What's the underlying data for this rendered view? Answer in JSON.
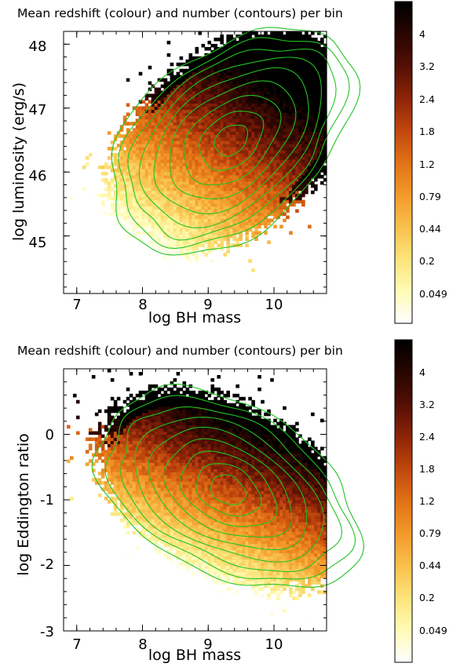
{
  "chart_data": [
    {
      "type": "heatmap",
      "title": "Mean redshift (colour) and number (contours)  per bin",
      "xlabel": "log BH mass",
      "ylabel": "log luminosity (erg/s)",
      "xlim": [
        6.8,
        10.8
      ],
      "ylim": [
        44.1,
        48.2
      ],
      "x_ticks": [
        7,
        8,
        9,
        10
      ],
      "y_ticks": [
        45,
        46,
        47,
        48
      ],
      "x_tick_labels": [
        "7",
        "8",
        "9",
        "10"
      ],
      "y_tick_labels": [
        "45",
        "46",
        "47",
        "48"
      ],
      "colorbar": {
        "label_values": [
          "0.049",
          "0.2",
          "0.44",
          "0.79",
          "1.2",
          "1.8",
          "2.4",
          "3.2",
          "4"
        ],
        "colormap": [
          "#ffffff",
          "#fffbb3",
          "#fde37a",
          "#f9c04c",
          "#f39a2a",
          "#e17216",
          "#c2480e",
          "#8e2508",
          "#561005",
          "#2a0602",
          "#000000"
        ]
      },
      "contour_color": "#22c322",
      "density_peak": {
        "x": 9.35,
        "y": 46.5
      },
      "density_axis_angle_deg": 42,
      "contour_radii": [
        [
          0.28,
          0.21
        ],
        [
          0.55,
          0.38
        ],
        [
          0.85,
          0.55
        ],
        [
          1.12,
          0.71
        ],
        [
          1.38,
          0.86
        ],
        [
          1.62,
          1.0
        ],
        [
          1.82,
          1.13
        ],
        [
          2.0,
          1.25
        ],
        [
          2.16,
          1.38
        ]
      ],
      "redshift_trend": {
        "low": [
          7.8,
          45.0
        ],
        "high": [
          9.5,
          47.6
        ]
      }
    },
    {
      "type": "heatmap",
      "title": "Mean redshift (colour) and number (contours)  per bin",
      "xlabel": "log BH mass",
      "ylabel": "log Eddington ratio",
      "xlim": [
        6.8,
        10.8
      ],
      "ylim": [
        -3.0,
        1.0
      ],
      "x_ticks": [
        7,
        8,
        9,
        10
      ],
      "y_ticks": [
        -3,
        -2,
        -1,
        0
      ],
      "x_tick_labels": [
        "7",
        "8",
        "9",
        "10"
      ],
      "y_tick_labels": [
        "-3",
        "-2",
        "-1",
        "0"
      ],
      "colorbar": {
        "label_values": [
          "0.049",
          "0.2",
          "0.44",
          "0.79",
          "1.2",
          "1.8",
          "2.4",
          "3.2",
          "4"
        ],
        "colormap": [
          "#ffffff",
          "#fffbb3",
          "#fde37a",
          "#f9c04c",
          "#f39a2a",
          "#e17216",
          "#c2480e",
          "#8e2508",
          "#561005",
          "#2a0602",
          "#000000"
        ]
      },
      "contour_color": "#22c322",
      "density_peak": {
        "x": 9.3,
        "y": -0.85
      },
      "density_axis_angle_deg": -28,
      "contour_radii": [
        [
          0.28,
          0.21
        ],
        [
          0.52,
          0.36
        ],
        [
          0.78,
          0.5
        ],
        [
          1.04,
          0.64
        ],
        [
          1.3,
          0.78
        ],
        [
          1.55,
          0.92
        ],
        [
          1.78,
          1.05
        ],
        [
          1.98,
          1.18
        ],
        [
          2.15,
          1.3
        ]
      ],
      "redshift_trend": {
        "low": [
          8.0,
          -1.9
        ],
        "high": [
          9.0,
          0.4
        ]
      }
    }
  ]
}
